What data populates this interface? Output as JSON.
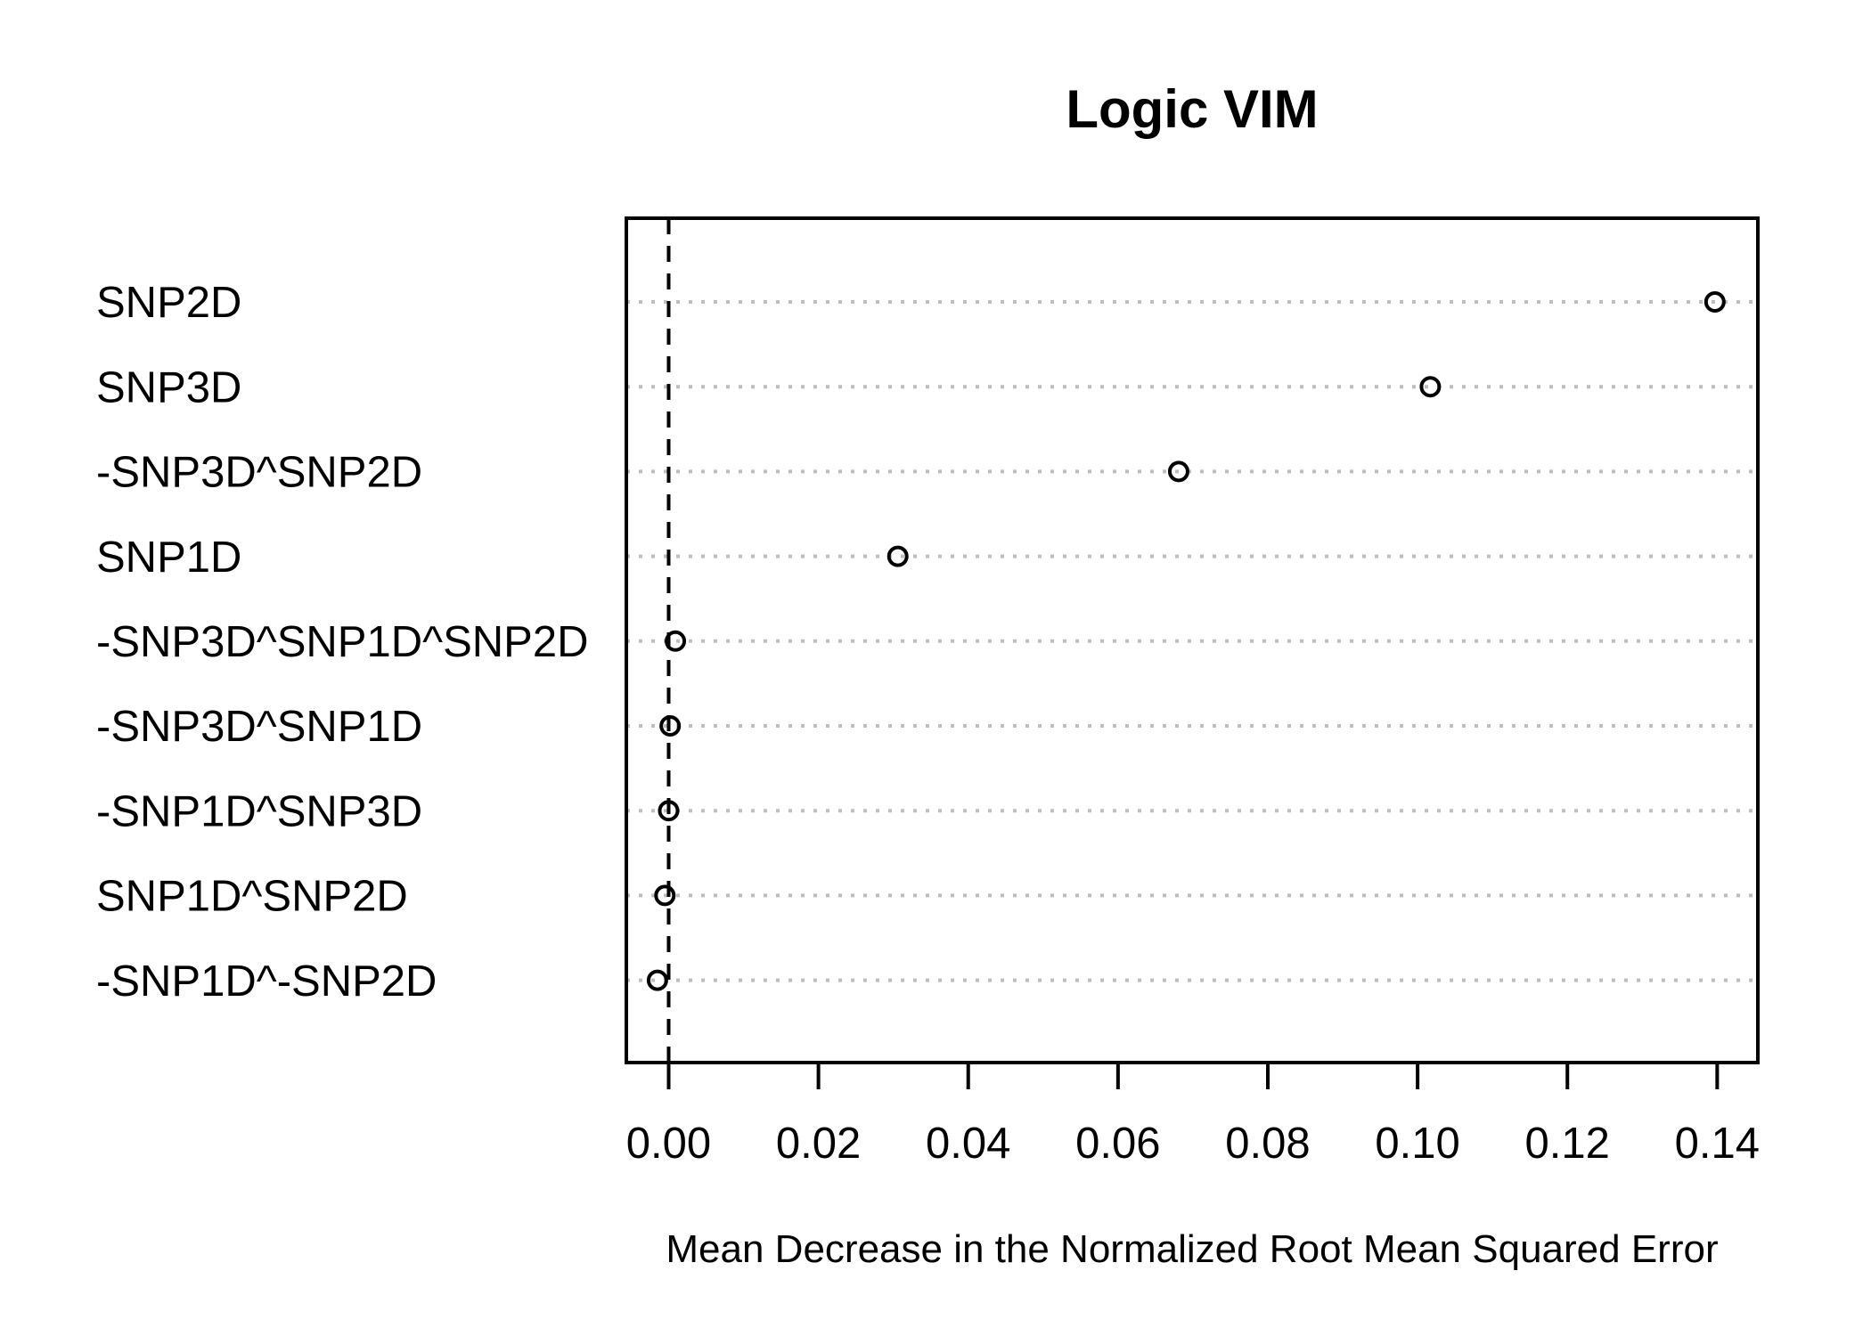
{
  "chart_data": {
    "type": "scatter",
    "variant": "dotchart",
    "title": "Logic VIM",
    "xlabel": "Mean Decrease in the Normalized Root Mean Squared Error",
    "categories": [
      "SNP2D",
      "SNP3D",
      "-SNP3D^SNP2D",
      "SNP1D",
      "-SNP3D^SNP1D^SNP2D",
      "-SNP3D^SNP1D",
      "-SNP1D^SNP3D",
      "SNP1D^SNP2D",
      "-SNP1D^-SNP2D"
    ],
    "values": [
      0.1397,
      0.1017,
      0.0681,
      0.0306,
      0.0009,
      0.0002,
      0.0,
      -0.0005,
      -0.0015
    ],
    "x_ticks": [
      {
        "value": 0.0,
        "label": "0.00"
      },
      {
        "value": 0.02,
        "label": "0.02"
      },
      {
        "value": 0.04,
        "label": "0.04"
      },
      {
        "value": 0.06,
        "label": "0.06"
      },
      {
        "value": 0.08,
        "label": "0.08"
      },
      {
        "value": 0.1,
        "label": "0.10"
      },
      {
        "value": 0.12,
        "label": "0.12"
      },
      {
        "value": 0.14,
        "label": "0.14"
      }
    ],
    "xlim": [
      -0.00565,
      0.14543
    ],
    "reference_line_x": 0,
    "grid": "dotted-horizontal-per-category",
    "legend": "none",
    "point_style": "open-circle",
    "colors": {
      "points": "#000000",
      "grid": "#BEBEBE",
      "reference_line": "#000000",
      "text": "#000000",
      "background": "#FFFFFF"
    }
  }
}
